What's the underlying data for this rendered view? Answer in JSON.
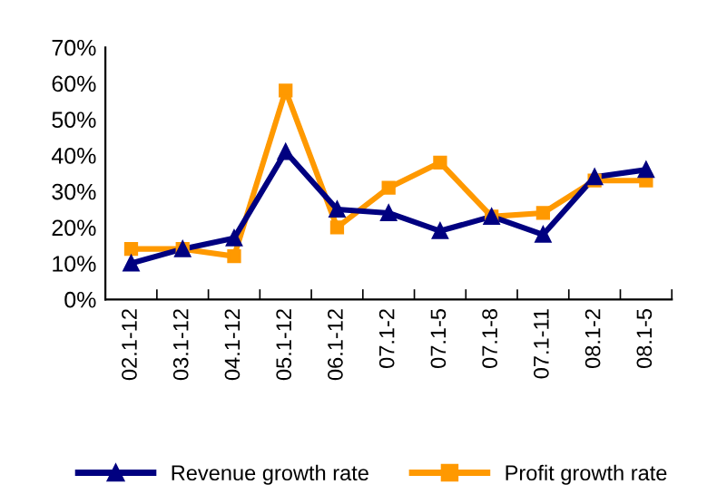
{
  "chart_data": {
    "type": "line",
    "categories": [
      "02.1-12",
      "03.1-12",
      "04.1-12",
      "05.1-12",
      "06.1-12",
      "07.1-2",
      "07.1-5",
      "07.1-8",
      "07.1-11",
      "08.1-2",
      "08.1-5"
    ],
    "series": [
      {
        "name": "Revenue growth rate",
        "color": "#000080",
        "marker": "triangle",
        "values": [
          10,
          14,
          17,
          41,
          25,
          24,
          19,
          23,
          18,
          34,
          36
        ]
      },
      {
        "name": "Profit growth rate",
        "color": "#ff9900",
        "marker": "square",
        "values": [
          14,
          14,
          12,
          58,
          20,
          31,
          38,
          23,
          24,
          33,
          33
        ]
      }
    ],
    "ylim": [
      0,
      70
    ],
    "yticks": [
      {
        "value": 0,
        "label": "0%"
      },
      {
        "value": 10,
        "label": "10%"
      },
      {
        "value": 20,
        "label": "20%"
      },
      {
        "value": 30,
        "label": "30%"
      },
      {
        "value": 40,
        "label": "40%"
      },
      {
        "value": 50,
        "label": "50%"
      },
      {
        "value": 60,
        "label": "60%"
      },
      {
        "value": 70,
        "label": "70%"
      }
    ],
    "grid": false,
    "legend": "bottom",
    "line_style": "solid"
  }
}
